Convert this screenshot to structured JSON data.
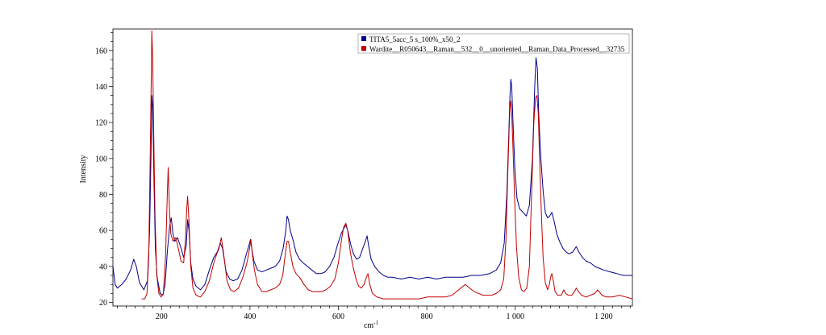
{
  "chart_data": {
    "type": "line",
    "xlabel": "cm",
    "xlabel_sup": "-1",
    "ylabel": "Intensity",
    "xlim": [
      90,
      1265
    ],
    "ylim": [
      18,
      172
    ],
    "x_ticks": [
      200,
      400,
      600,
      800,
      1000,
      1200
    ],
    "x_tick_labels": [
      "200",
      "400",
      "600",
      "800",
      "1 000",
      "1 200"
    ],
    "y_ticks": [
      20,
      40,
      60,
      80,
      100,
      120,
      140,
      160
    ],
    "y_tick_labels": [
      "20",
      "40",
      "60",
      "80",
      "100",
      "120",
      "140",
      "160"
    ],
    "grid": false,
    "legend_position": "top-right",
    "series": [
      {
        "name": "TITA5_5acc_5 s_100%_x50_2",
        "color": "#00008b",
        "points": [
          [
            90,
            40
          ],
          [
            95,
            30
          ],
          [
            100,
            28
          ],
          [
            110,
            30
          ],
          [
            120,
            33
          ],
          [
            130,
            38
          ],
          [
            137,
            44
          ],
          [
            143,
            40
          ],
          [
            150,
            31
          ],
          [
            160,
            27
          ],
          [
            168,
            32
          ],
          [
            173,
            60
          ],
          [
            176,
            100
          ],
          [
            178,
            135
          ],
          [
            180,
            128
          ],
          [
            183,
            85
          ],
          [
            186,
            50
          ],
          [
            190,
            34
          ],
          [
            197,
            25
          ],
          [
            203,
            24
          ],
          [
            208,
            30
          ],
          [
            213,
            48
          ],
          [
            218,
            62
          ],
          [
            222,
            67
          ],
          [
            226,
            58
          ],
          [
            230,
            54
          ],
          [
            236,
            56
          ],
          [
            243,
            51
          ],
          [
            250,
            45
          ],
          [
            256,
            52
          ],
          [
            259,
            66
          ],
          [
            262,
            60
          ],
          [
            266,
            42
          ],
          [
            271,
            33
          ],
          [
            278,
            29
          ],
          [
            288,
            27
          ],
          [
            298,
            30
          ],
          [
            308,
            38
          ],
          [
            318,
            45
          ],
          [
            326,
            48
          ],
          [
            333,
            53
          ],
          [
            338,
            50
          ],
          [
            346,
            37
          ],
          [
            354,
            33
          ],
          [
            362,
            32
          ],
          [
            372,
            33
          ],
          [
            382,
            38
          ],
          [
            392,
            47
          ],
          [
            398,
            52
          ],
          [
            401,
            55
          ],
          [
            404,
            50
          ],
          [
            409,
            43
          ],
          [
            417,
            38
          ],
          [
            427,
            37
          ],
          [
            437,
            38
          ],
          [
            447,
            39
          ],
          [
            457,
            40
          ],
          [
            467,
            43
          ],
          [
            475,
            50
          ],
          [
            481,
            60
          ],
          [
            484,
            68
          ],
          [
            487,
            66
          ],
          [
            491,
            60
          ],
          [
            497,
            55
          ],
          [
            504,
            48
          ],
          [
            512,
            44
          ],
          [
            520,
            42
          ],
          [
            530,
            40
          ],
          [
            540,
            38
          ],
          [
            550,
            36
          ],
          [
            560,
            36
          ],
          [
            570,
            37
          ],
          [
            580,
            40
          ],
          [
            590,
            45
          ],
          [
            598,
            52
          ],
          [
            606,
            58
          ],
          [
            612,
            61
          ],
          [
            617,
            63
          ],
          [
            622,
            59
          ],
          [
            628,
            52
          ],
          [
            634,
            47
          ],
          [
            641,
            44
          ],
          [
            648,
            45
          ],
          [
            655,
            50
          ],
          [
            661,
            54
          ],
          [
            665,
            57
          ],
          [
            668,
            52
          ],
          [
            674,
            44
          ],
          [
            682,
            40
          ],
          [
            692,
            37
          ],
          [
            702,
            35
          ],
          [
            712,
            34
          ],
          [
            722,
            34
          ],
          [
            742,
            33
          ],
          [
            762,
            34
          ],
          [
            782,
            33
          ],
          [
            802,
            34
          ],
          [
            822,
            33
          ],
          [
            842,
            34
          ],
          [
            862,
            34
          ],
          [
            882,
            34
          ],
          [
            902,
            35
          ],
          [
            922,
            35
          ],
          [
            942,
            36
          ],
          [
            957,
            38
          ],
          [
            967,
            42
          ],
          [
            975,
            53
          ],
          [
            981,
            80
          ],
          [
            985,
            110
          ],
          [
            988,
            135
          ],
          [
            990,
            144
          ],
          [
            992,
            140
          ],
          [
            995,
            120
          ],
          [
            999,
            95
          ],
          [
            1004,
            78
          ],
          [
            1010,
            72
          ],
          [
            1018,
            70
          ],
          [
            1025,
            68
          ],
          [
            1032,
            74
          ],
          [
            1039,
            100
          ],
          [
            1044,
            140
          ],
          [
            1047,
            156
          ],
          [
            1050,
            150
          ],
          [
            1053,
            125
          ],
          [
            1058,
            100
          ],
          [
            1063,
            82
          ],
          [
            1068,
            70
          ],
          [
            1073,
            67
          ],
          [
            1078,
            68
          ],
          [
            1083,
            70
          ],
          [
            1088,
            65
          ],
          [
            1094,
            58
          ],
          [
            1100,
            54
          ],
          [
            1108,
            50
          ],
          [
            1115,
            48
          ],
          [
            1122,
            47
          ],
          [
            1130,
            48
          ],
          [
            1138,
            51
          ],
          [
            1144,
            48
          ],
          [
            1152,
            45
          ],
          [
            1160,
            43
          ],
          [
            1170,
            42
          ],
          [
            1180,
            40
          ],
          [
            1190,
            39
          ],
          [
            1200,
            38
          ],
          [
            1215,
            37
          ],
          [
            1230,
            36
          ],
          [
            1245,
            35
          ],
          [
            1265,
            35
          ]
        ]
      },
      {
        "name": "Wardite__R050643__Raman__532__0__unoriented__Raman_Data_Processed__32735",
        "color": "#c00000",
        "points": [
          [
            155,
            22
          ],
          [
            162,
            22
          ],
          [
            167,
            25
          ],
          [
            171,
            45
          ],
          [
            174,
            95
          ],
          [
            177,
            150
          ],
          [
            178,
            171
          ],
          [
            180,
            155
          ],
          [
            182,
            120
          ],
          [
            185,
            70
          ],
          [
            189,
            35
          ],
          [
            194,
            25
          ],
          [
            199,
            23
          ],
          [
            204,
            25
          ],
          [
            209,
            45
          ],
          [
            213,
            80
          ],
          [
            215,
            95
          ],
          [
            218,
            70
          ],
          [
            221,
            58
          ],
          [
            226,
            54
          ],
          [
            232,
            56
          ],
          [
            238,
            50
          ],
          [
            244,
            43
          ],
          [
            250,
            42
          ],
          [
            254,
            55
          ],
          [
            257,
            72
          ],
          [
            259,
            79
          ],
          [
            262,
            65
          ],
          [
            266,
            40
          ],
          [
            271,
            28
          ],
          [
            278,
            24
          ],
          [
            288,
            23
          ],
          [
            298,
            26
          ],
          [
            308,
            32
          ],
          [
            318,
            42
          ],
          [
            325,
            47
          ],
          [
            330,
            50
          ],
          [
            335,
            56
          ],
          [
            340,
            48
          ],
          [
            348,
            32
          ],
          [
            356,
            27
          ],
          [
            364,
            26
          ],
          [
            374,
            28
          ],
          [
            384,
            34
          ],
          [
            394,
            43
          ],
          [
            399,
            50
          ],
          [
            402,
            55
          ],
          [
            405,
            48
          ],
          [
            410,
            38
          ],
          [
            417,
            30
          ],
          [
            427,
            26
          ],
          [
            437,
            26
          ],
          [
            447,
            27
          ],
          [
            457,
            28
          ],
          [
            467,
            30
          ],
          [
            474,
            35
          ],
          [
            479,
            45
          ],
          [
            484,
            54
          ],
          [
            487,
            54
          ],
          [
            491,
            48
          ],
          [
            497,
            40
          ],
          [
            504,
            36
          ],
          [
            512,
            34
          ],
          [
            522,
            30
          ],
          [
            532,
            27
          ],
          [
            542,
            26
          ],
          [
            552,
            26
          ],
          [
            562,
            26
          ],
          [
            572,
            27
          ],
          [
            582,
            29
          ],
          [
            592,
            33
          ],
          [
            600,
            42
          ],
          [
            607,
            55
          ],
          [
            612,
            62
          ],
          [
            617,
            64
          ],
          [
            621,
            60
          ],
          [
            627,
            48
          ],
          [
            633,
            40
          ],
          [
            640,
            33
          ],
          [
            646,
            29
          ],
          [
            652,
            28
          ],
          [
            658,
            30
          ],
          [
            663,
            34
          ],
          [
            667,
            36
          ],
          [
            671,
            30
          ],
          [
            677,
            25
          ],
          [
            687,
            23
          ],
          [
            702,
            22
          ],
          [
            722,
            22
          ],
          [
            742,
            22
          ],
          [
            762,
            22
          ],
          [
            782,
            22
          ],
          [
            802,
            23
          ],
          [
            822,
            23
          ],
          [
            842,
            23
          ],
          [
            857,
            24
          ],
          [
            867,
            26
          ],
          [
            877,
            28
          ],
          [
            887,
            30
          ],
          [
            897,
            28
          ],
          [
            907,
            26
          ],
          [
            917,
            25
          ],
          [
            927,
            24
          ],
          [
            937,
            24
          ],
          [
            947,
            24
          ],
          [
            957,
            25
          ],
          [
            967,
            27
          ],
          [
            974,
            33
          ],
          [
            979,
            55
          ],
          [
            983,
            90
          ],
          [
            986,
            115
          ],
          [
            988,
            128
          ],
          [
            990,
            132
          ],
          [
            992,
            125
          ],
          [
            995,
            105
          ],
          [
            999,
            75
          ],
          [
            1003,
            50
          ],
          [
            1008,
            34
          ],
          [
            1014,
            27
          ],
          [
            1020,
            26
          ],
          [
            1026,
            28
          ],
          [
            1032,
            40
          ],
          [
            1037,
            80
          ],
          [
            1042,
            120
          ],
          [
            1046,
            134
          ],
          [
            1049,
            135
          ],
          [
            1052,
            125
          ],
          [
            1055,
            100
          ],
          [
            1059,
            70
          ],
          [
            1063,
            45
          ],
          [
            1068,
            31
          ],
          [
            1073,
            27
          ],
          [
            1077,
            30
          ],
          [
            1080,
            34
          ],
          [
            1083,
            36
          ],
          [
            1086,
            32
          ],
          [
            1090,
            26
          ],
          [
            1096,
            24
          ],
          [
            1104,
            24
          ],
          [
            1110,
            27
          ],
          [
            1114,
            25
          ],
          [
            1120,
            24
          ],
          [
            1128,
            24
          ],
          [
            1134,
            26
          ],
          [
            1138,
            28
          ],
          [
            1143,
            26
          ],
          [
            1150,
            24
          ],
          [
            1160,
            23
          ],
          [
            1170,
            24
          ],
          [
            1180,
            25
          ],
          [
            1186,
            27
          ],
          [
            1190,
            26
          ],
          [
            1196,
            24
          ],
          [
            1206,
            23
          ],
          [
            1220,
            23
          ],
          [
            1235,
            24
          ],
          [
            1250,
            23
          ],
          [
            1265,
            22
          ]
        ]
      }
    ]
  }
}
